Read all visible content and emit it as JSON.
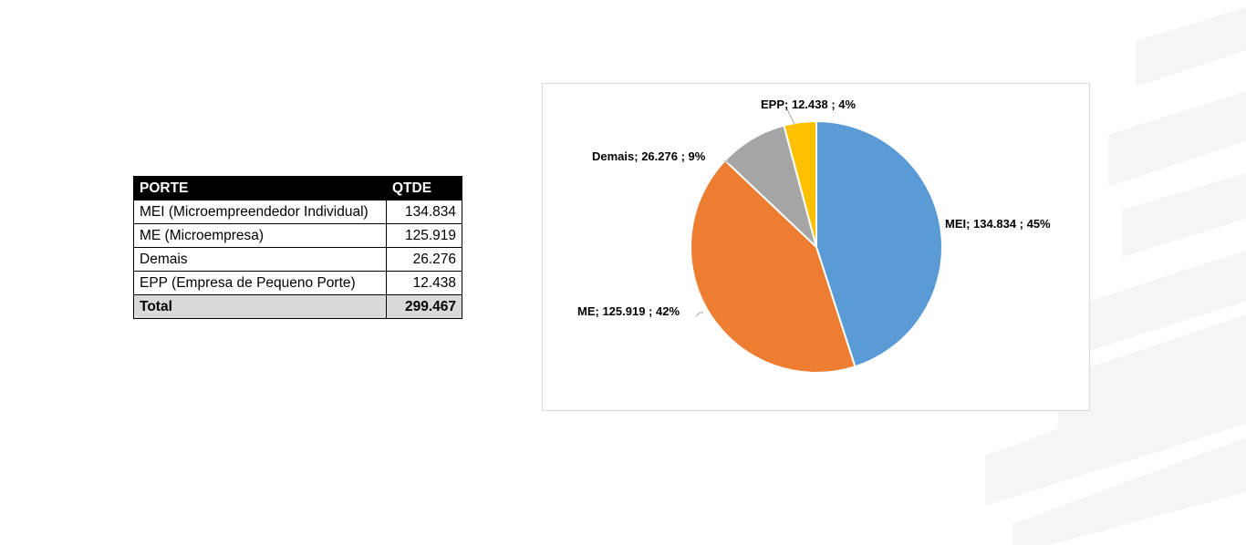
{
  "table": {
    "headers": [
      "PORTE",
      "QTDE"
    ],
    "rows": [
      {
        "porte": "MEI (Microempreendedor Individual)",
        "qtde": "134.834"
      },
      {
        "porte": "ME (Microempresa)",
        "qtde": "125.919"
      },
      {
        "porte": "Demais",
        "qtde": "26.276"
      },
      {
        "porte": "EPP (Empresa de Pequeno Porte)",
        "qtde": "12.438"
      }
    ],
    "total": {
      "porte": "Total",
      "qtde": "299.467"
    }
  },
  "chart_data": {
    "type": "pie",
    "categories": [
      "MEI",
      "ME",
      "Demais",
      "EPP"
    ],
    "values": [
      134834,
      125919,
      26276,
      12438
    ],
    "labels": [
      "MEI;  134.834 ; 45%",
      "ME;  125.919 ; 42%",
      "Demais;  26.276 ; 9%",
      "EPP;  12.438 ; 4%"
    ],
    "colors": [
      "#5b9bd5",
      "#ed7d31",
      "#a5a5a5",
      "#ffc000"
    ],
    "start": "12 o'clock",
    "direction": "clockwise",
    "title": ""
  },
  "colors": {
    "table_header_bg": "#000000",
    "total_row_bg": "#d9d9d9",
    "background_stripes": "#f5f5f5"
  }
}
